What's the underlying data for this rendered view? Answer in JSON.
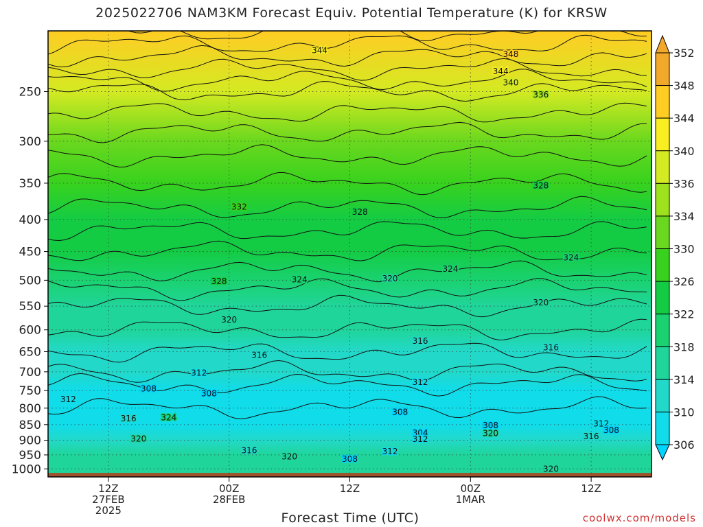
{
  "title": "2025022706 NAM3KM Forecast Equiv. Potential Temperature (K) for KRSW",
  "credit": "coolwx.com/models",
  "chart_data": {
    "type": "heatmap",
    "title": "2025022706 NAM3KM Forecast Equiv. Potential Temperature (K) for KRSW",
    "xlabel": "Forecast Time (UTC)",
    "ylabel": "",
    "units": "K",
    "x_ticks": [
      {
        "hour": 6,
        "lines": [
          "12Z",
          "27FEB",
          "2025"
        ]
      },
      {
        "hour": 18,
        "lines": [
          "00Z",
          "28FEB"
        ]
      },
      {
        "hour": 30,
        "lines": [
          "12Z"
        ]
      },
      {
        "hour": 42,
        "lines": [
          "00Z",
          "1MAR"
        ]
      },
      {
        "hour": 54,
        "lines": [
          "12Z"
        ]
      }
    ],
    "x_range_hours": [
      0,
      60
    ],
    "y_ticks_hpa": [
      250,
      300,
      350,
      400,
      450,
      500,
      550,
      600,
      650,
      700,
      750,
      800,
      850,
      900,
      950,
      1000
    ],
    "y_range_hpa": [
      1030,
      200
    ],
    "y_scale": "log-pressure",
    "grid": true,
    "colorbar_levels": [
      306,
      310,
      314,
      318,
      322,
      326,
      330,
      334,
      336,
      340,
      344,
      348,
      352
    ],
    "colorbar_colors": [
      "#00d4ff",
      "#10dcea",
      "#22d9c9",
      "#20d59a",
      "#1ad270",
      "#14cc44",
      "#38d21e",
      "#6ad81e",
      "#9ee21e",
      "#d4ea22",
      "#f8ee22",
      "#ffcc24",
      "#f2a82a"
    ],
    "contour_levels": [
      308,
      312,
      316,
      320,
      324,
      328,
      332,
      336,
      340,
      344,
      348
    ],
    "field_profile_hpa": [
      {
        "p": 1030,
        "theta_e": 318
      },
      {
        "p": 1000,
        "theta_e": 319
      },
      {
        "p": 950,
        "theta_e": 319
      },
      {
        "p": 900,
        "theta_e": 316
      },
      {
        "p": 850,
        "theta_e": 310
      },
      {
        "p": 800,
        "theta_e": 310
      },
      {
        "p": 750,
        "theta_e": 311
      },
      {
        "p": 700,
        "theta_e": 314
      },
      {
        "p": 650,
        "theta_e": 316
      },
      {
        "p": 600,
        "theta_e": 318
      },
      {
        "p": 550,
        "theta_e": 320
      },
      {
        "p": 500,
        "theta_e": 323
      },
      {
        "p": 450,
        "theta_e": 326
      },
      {
        "p": 400,
        "theta_e": 329
      },
      {
        "p": 350,
        "theta_e": 332
      },
      {
        "p": 300,
        "theta_e": 335
      },
      {
        "p": 250,
        "theta_e": 340
      },
      {
        "p": 200,
        "theta_e": 350
      }
    ],
    "contour_labels": [
      {
        "hour": 27,
        "hpa": 215,
        "text": "344"
      },
      {
        "hour": 46,
        "hpa": 218,
        "text": "348"
      },
      {
        "hour": 45,
        "hpa": 232,
        "text": "344"
      },
      {
        "hour": 46,
        "hpa": 242,
        "text": "340"
      },
      {
        "hour": 49,
        "hpa": 253,
        "text": "336"
      },
      {
        "hour": 49,
        "hpa": 353,
        "text": "328"
      },
      {
        "hour": 19,
        "hpa": 382,
        "text": "332"
      },
      {
        "hour": 31,
        "hpa": 389,
        "text": "328"
      },
      {
        "hour": 52,
        "hpa": 460,
        "text": "324"
      },
      {
        "hour": 40,
        "hpa": 480,
        "text": "324"
      },
      {
        "hour": 17,
        "hpa": 502,
        "text": "328"
      },
      {
        "hour": 25,
        "hpa": 499,
        "text": "324"
      },
      {
        "hour": 34,
        "hpa": 497,
        "text": "320"
      },
      {
        "hour": 49,
        "hpa": 543,
        "text": "320"
      },
      {
        "hour": 18,
        "hpa": 578,
        "text": "320"
      },
      {
        "hour": 37,
        "hpa": 625,
        "text": "316"
      },
      {
        "hour": 50,
        "hpa": 640,
        "text": "316"
      },
      {
        "hour": 21,
        "hpa": 658,
        "text": "316"
      },
      {
        "hour": 15,
        "hpa": 703,
        "text": "312"
      },
      {
        "hour": 37,
        "hpa": 727,
        "text": "312"
      },
      {
        "hour": 10,
        "hpa": 745,
        "text": "308"
      },
      {
        "hour": 16,
        "hpa": 758,
        "text": "308"
      },
      {
        "hour": 2,
        "hpa": 775,
        "text": "312"
      },
      {
        "hour": 35,
        "hpa": 812,
        "text": "308"
      },
      {
        "hour": 8,
        "hpa": 831,
        "text": "316"
      },
      {
        "hour": 12,
        "hpa": 828,
        "text": "324"
      },
      {
        "hour": 44,
        "hpa": 852,
        "text": "308"
      },
      {
        "hour": 55,
        "hpa": 847,
        "text": "312"
      },
      {
        "hour": 56,
        "hpa": 868,
        "text": "308"
      },
      {
        "hour": 37,
        "hpa": 877,
        "text": "304"
      },
      {
        "hour": 44,
        "hpa": 878,
        "text": "320"
      },
      {
        "hour": 9,
        "hpa": 895,
        "text": "320"
      },
      {
        "hour": 37,
        "hpa": 897,
        "text": "312"
      },
      {
        "hour": 54,
        "hpa": 888,
        "text": "316"
      },
      {
        "hour": 20,
        "hpa": 935,
        "text": "316"
      },
      {
        "hour": 34,
        "hpa": 938,
        "text": "312"
      },
      {
        "hour": 24,
        "hpa": 956,
        "text": "320"
      },
      {
        "hour": 30,
        "hpa": 965,
        "text": "308"
      },
      {
        "hour": 50,
        "hpa": 1000,
        "text": "320"
      }
    ]
  }
}
